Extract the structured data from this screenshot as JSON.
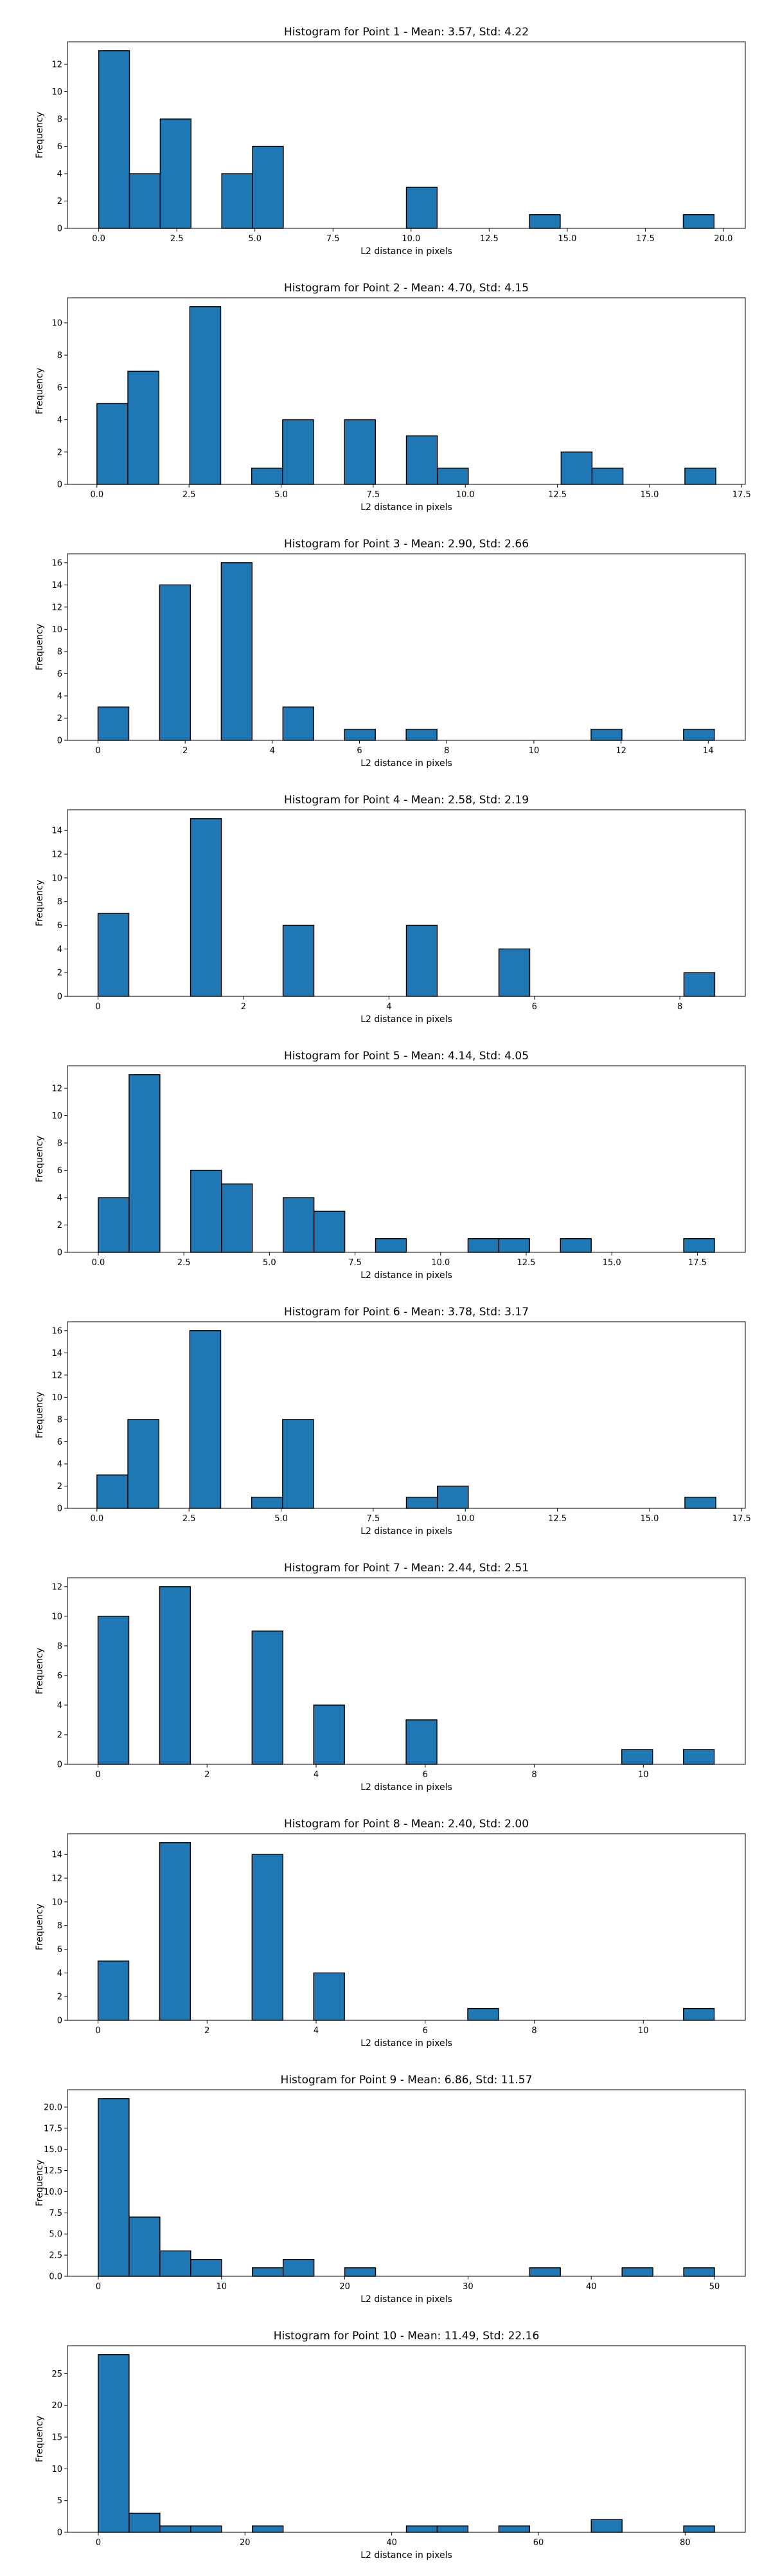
{
  "chart_data": [
    {
      "type": "bar",
      "title": "Histogram for Point 1 - Mean: 3.57, Std: 4.22",
      "xlabel": "L2 distance in pixels",
      "ylabel": "Frequency",
      "bar_color": "#1f77b4",
      "edge_color": "#000000",
      "bin_width": 0.985,
      "bins": [
        {
          "start": 0.0,
          "count": 13
        },
        {
          "start": 0.985,
          "count": 4
        },
        {
          "start": 1.97,
          "count": 8
        },
        {
          "start": 3.94,
          "count": 4
        },
        {
          "start": 4.925,
          "count": 6
        },
        {
          "start": 9.85,
          "count": 3
        },
        {
          "start": 13.79,
          "count": 1
        },
        {
          "start": 18.715,
          "count": 1
        }
      ],
      "xlim": [
        -1.0,
        20.7
      ],
      "ylim": [
        0,
        13.65
      ],
      "xticks": [
        0.0,
        2.5,
        5.0,
        7.5,
        10.0,
        12.5,
        15.0,
        17.5,
        20.0
      ],
      "xtick_labels": [
        "0.0",
        "2.5",
        "5.0",
        "7.5",
        "10.0",
        "12.5",
        "15.0",
        "17.5",
        "20.0"
      ],
      "yticks": [
        0,
        2,
        4,
        6,
        8,
        10,
        12
      ],
      "ytick_labels": [
        "0",
        "2",
        "4",
        "6",
        "8",
        "10",
        "12"
      ]
    },
    {
      "type": "bar",
      "title": "Histogram for Point 2 - Mean: 4.70, Std: 4.15",
      "xlabel": "L2 distance in pixels",
      "ylabel": "Frequency",
      "bar_color": "#1f77b4",
      "edge_color": "#000000",
      "bin_width": 0.84,
      "bins": [
        {
          "start": 0.0,
          "count": 5
        },
        {
          "start": 0.84,
          "count": 7
        },
        {
          "start": 2.52,
          "count": 11
        },
        {
          "start": 4.2,
          "count": 1
        },
        {
          "start": 5.04,
          "count": 4
        },
        {
          "start": 6.72,
          "count": 4
        },
        {
          "start": 8.4,
          "count": 3
        },
        {
          "start": 9.24,
          "count": 1
        },
        {
          "start": 12.6,
          "count": 2
        },
        {
          "start": 13.44,
          "count": 1
        },
        {
          "start": 15.96,
          "count": 1
        }
      ],
      "xlim": [
        -0.8,
        17.6
      ],
      "ylim": [
        0,
        11.55
      ],
      "xticks": [
        0.0,
        2.5,
        5.0,
        7.5,
        10.0,
        12.5,
        15.0,
        17.5
      ],
      "xtick_labels": [
        "0.0",
        "2.5",
        "5.0",
        "7.5",
        "10.0",
        "12.5",
        "15.0",
        "17.5"
      ],
      "yticks": [
        0,
        2,
        4,
        6,
        8,
        10
      ],
      "ytick_labels": [
        "0",
        "2",
        "4",
        "6",
        "8",
        "10"
      ]
    },
    {
      "type": "bar",
      "title": "Histogram for Point 3 - Mean: 2.90, Std: 2.66",
      "xlabel": "L2 distance in pixels",
      "ylabel": "Frequency",
      "bar_color": "#1f77b4",
      "edge_color": "#000000",
      "bin_width": 0.707,
      "bins": [
        {
          "start": 0.0,
          "count": 3
        },
        {
          "start": 1.414,
          "count": 14
        },
        {
          "start": 2.828,
          "count": 16
        },
        {
          "start": 4.242,
          "count": 3
        },
        {
          "start": 5.656,
          "count": 1
        },
        {
          "start": 7.07,
          "count": 1
        },
        {
          "start": 11.312,
          "count": 1
        },
        {
          "start": 13.433,
          "count": 1
        }
      ],
      "xlim": [
        -0.7,
        14.85
      ],
      "ylim": [
        0,
        16.8
      ],
      "xticks": [
        0,
        2,
        4,
        6,
        8,
        10,
        12,
        14
      ],
      "xtick_labels": [
        "0",
        "2",
        "4",
        "6",
        "8",
        "10",
        "12",
        "14"
      ],
      "yticks": [
        0,
        2,
        4,
        6,
        8,
        10,
        12,
        14,
        16
      ],
      "ytick_labels": [
        "0",
        "2",
        "4",
        "6",
        "8",
        "10",
        "12",
        "14",
        "16"
      ]
    },
    {
      "type": "bar",
      "title": "Histogram for Point 4 - Mean: 2.58, Std: 2.19",
      "xlabel": "L2 distance in pixels",
      "ylabel": "Frequency",
      "bar_color": "#1f77b4",
      "edge_color": "#000000",
      "bin_width": 0.424,
      "bins": [
        {
          "start": 0.0,
          "count": 7
        },
        {
          "start": 1.272,
          "count": 15
        },
        {
          "start": 2.544,
          "count": 6
        },
        {
          "start": 4.24,
          "count": 6
        },
        {
          "start": 5.512,
          "count": 4
        },
        {
          "start": 8.056,
          "count": 2
        }
      ],
      "xlim": [
        -0.42,
        8.9
      ],
      "ylim": [
        0,
        15.75
      ],
      "xticks": [
        0,
        2,
        4,
        6,
        8
      ],
      "xtick_labels": [
        "0",
        "2",
        "4",
        "6",
        "8"
      ],
      "yticks": [
        0,
        2,
        4,
        6,
        8,
        10,
        12,
        14
      ],
      "ytick_labels": [
        "0",
        "2",
        "4",
        "6",
        "8",
        "10",
        "12",
        "14"
      ]
    },
    {
      "type": "bar",
      "title": "Histogram for Point 5 - Mean: 4.14, Std: 4.05",
      "xlabel": "L2 distance in pixels",
      "ylabel": "Frequency",
      "bar_color": "#1f77b4",
      "edge_color": "#000000",
      "bin_width": 0.9,
      "bins": [
        {
          "start": 0.0,
          "count": 4
        },
        {
          "start": 0.9,
          "count": 13
        },
        {
          "start": 2.7,
          "count": 6
        },
        {
          "start": 3.6,
          "count": 5
        },
        {
          "start": 5.4,
          "count": 4
        },
        {
          "start": 6.3,
          "count": 3
        },
        {
          "start": 8.1,
          "count": 1
        },
        {
          "start": 10.8,
          "count": 1
        },
        {
          "start": 11.7,
          "count": 1
        },
        {
          "start": 13.5,
          "count": 1
        },
        {
          "start": 17.1,
          "count": 1
        }
      ],
      "xlim": [
        -0.9,
        18.9
      ],
      "ylim": [
        0,
        13.65
      ],
      "xticks": [
        0.0,
        2.5,
        5.0,
        7.5,
        10.0,
        12.5,
        15.0,
        17.5
      ],
      "xtick_labels": [
        "0.0",
        "2.5",
        "5.0",
        "7.5",
        "10.0",
        "12.5",
        "15.0",
        "17.5"
      ],
      "yticks": [
        0,
        2,
        4,
        6,
        8,
        10,
        12
      ],
      "ytick_labels": [
        "0",
        "2",
        "4",
        "6",
        "8",
        "10",
        "12"
      ]
    },
    {
      "type": "bar",
      "title": "Histogram for Point 6 - Mean: 3.78, Std: 3.17",
      "xlabel": "L2 distance in pixels",
      "ylabel": "Frequency",
      "bar_color": "#1f77b4",
      "edge_color": "#000000",
      "bin_width": 0.84,
      "bins": [
        {
          "start": 0.0,
          "count": 3
        },
        {
          "start": 0.84,
          "count": 8
        },
        {
          "start": 2.52,
          "count": 16
        },
        {
          "start": 4.2,
          "count": 1
        },
        {
          "start": 5.04,
          "count": 8
        },
        {
          "start": 8.4,
          "count": 1
        },
        {
          "start": 9.24,
          "count": 2
        },
        {
          "start": 15.96,
          "count": 1
        }
      ],
      "xlim": [
        -0.8,
        17.6
      ],
      "ylim": [
        0,
        16.8
      ],
      "xticks": [
        0.0,
        2.5,
        5.0,
        7.5,
        10.0,
        12.5,
        15.0,
        17.5
      ],
      "xtick_labels": [
        "0.0",
        "2.5",
        "5.0",
        "7.5",
        "10.0",
        "12.5",
        "15.0",
        "17.5"
      ],
      "yticks": [
        0,
        2,
        4,
        6,
        8,
        10,
        12,
        14,
        16
      ],
      "ytick_labels": [
        "0",
        "2",
        "4",
        "6",
        "8",
        "10",
        "12",
        "14",
        "16"
      ]
    },
    {
      "type": "bar",
      "title": "Histogram for Point 7 - Mean: 2.44, Std: 2.51",
      "xlabel": "L2 distance in pixels",
      "ylabel": "Frequency",
      "bar_color": "#1f77b4",
      "edge_color": "#000000",
      "bin_width": 0.565,
      "bins": [
        {
          "start": 0.0,
          "count": 10
        },
        {
          "start": 1.13,
          "count": 12
        },
        {
          "start": 2.825,
          "count": 9
        },
        {
          "start": 3.955,
          "count": 4
        },
        {
          "start": 5.65,
          "count": 3
        },
        {
          "start": 9.605,
          "count": 1
        },
        {
          "start": 10.735,
          "count": 1
        }
      ],
      "xlim": [
        -0.56,
        11.87
      ],
      "ylim": [
        0,
        12.6
      ],
      "xticks": [
        0,
        2,
        4,
        6,
        8,
        10
      ],
      "xtick_labels": [
        "0",
        "2",
        "4",
        "6",
        "8",
        "10"
      ],
      "yticks": [
        0,
        2,
        4,
        6,
        8,
        10,
        12
      ],
      "ytick_labels": [
        "0",
        "2",
        "4",
        "6",
        "8",
        "10",
        "12"
      ]
    },
    {
      "type": "bar",
      "title": "Histogram for Point 8 - Mean: 2.40, Std: 2.00",
      "xlabel": "L2 distance in pixels",
      "ylabel": "Frequency",
      "bar_color": "#1f77b4",
      "edge_color": "#000000",
      "bin_width": 0.565,
      "bins": [
        {
          "start": 0.0,
          "count": 5
        },
        {
          "start": 1.13,
          "count": 15
        },
        {
          "start": 2.825,
          "count": 14
        },
        {
          "start": 3.955,
          "count": 4
        },
        {
          "start": 6.78,
          "count": 1
        },
        {
          "start": 10.735,
          "count": 1
        }
      ],
      "xlim": [
        -0.56,
        11.87
      ],
      "ylim": [
        0,
        15.75
      ],
      "xticks": [
        0,
        2,
        4,
        6,
        8,
        10
      ],
      "xtick_labels": [
        "0",
        "2",
        "4",
        "6",
        "8",
        "10"
      ],
      "yticks": [
        0,
        2,
        4,
        6,
        8,
        10,
        12,
        14
      ],
      "ytick_labels": [
        "0",
        "2",
        "4",
        "6",
        "8",
        "10",
        "12",
        "14"
      ]
    },
    {
      "type": "bar",
      "title": "Histogram for Point 9 - Mean: 6.86, Std: 11.57",
      "xlabel": "L2 distance in pixels",
      "ylabel": "Frequency",
      "bar_color": "#1f77b4",
      "edge_color": "#000000",
      "bin_width": 2.5,
      "bins": [
        {
          "start": 0.0,
          "count": 21
        },
        {
          "start": 2.5,
          "count": 7
        },
        {
          "start": 5.0,
          "count": 3
        },
        {
          "start": 7.5,
          "count": 2
        },
        {
          "start": 12.5,
          "count": 1
        },
        {
          "start": 15.0,
          "count": 2
        },
        {
          "start": 20.0,
          "count": 1
        },
        {
          "start": 35.0,
          "count": 1
        },
        {
          "start": 42.5,
          "count": 1
        },
        {
          "start": 47.5,
          "count": 1
        }
      ],
      "xlim": [
        -2.5,
        52.5
      ],
      "ylim": [
        0,
        22.05
      ],
      "xticks": [
        0,
        10,
        20,
        30,
        40,
        50
      ],
      "xtick_labels": [
        "0",
        "10",
        "20",
        "30",
        "40",
        "50"
      ],
      "yticks": [
        0,
        2.5,
        5.0,
        7.5,
        10.0,
        12.5,
        15.0,
        17.5,
        20.0
      ],
      "ytick_labels": [
        "0.0",
        "2.5",
        "5.0",
        "7.5",
        "10.0",
        "12.5",
        "15.0",
        "17.5",
        "20.0"
      ]
    },
    {
      "type": "bar",
      "title": "Histogram for Point 10 - Mean: 11.49, Std: 22.16",
      "xlabel": "L2 distance in pixels",
      "ylabel": "Frequency",
      "bar_color": "#1f77b4",
      "edge_color": "#000000",
      "bin_width": 4.2,
      "bins": [
        {
          "start": 0.0,
          "count": 28
        },
        {
          "start": 4.2,
          "count": 3
        },
        {
          "start": 8.4,
          "count": 1
        },
        {
          "start": 12.6,
          "count": 1
        },
        {
          "start": 21.0,
          "count": 1
        },
        {
          "start": 42.0,
          "count": 1
        },
        {
          "start": 46.2,
          "count": 1
        },
        {
          "start": 54.6,
          "count": 1
        },
        {
          "start": 67.2,
          "count": 2
        },
        {
          "start": 79.8,
          "count": 1
        }
      ],
      "xlim": [
        -4.2,
        88.2
      ],
      "ylim": [
        0,
        29.4
      ],
      "xticks": [
        0,
        20,
        40,
        60,
        80
      ],
      "xtick_labels": [
        "0",
        "20",
        "40",
        "60",
        "80"
      ],
      "yticks": [
        0,
        5,
        10,
        15,
        20,
        25
      ],
      "ytick_labels": [
        "0",
        "5",
        "10",
        "15",
        "20",
        "25"
      ]
    }
  ]
}
